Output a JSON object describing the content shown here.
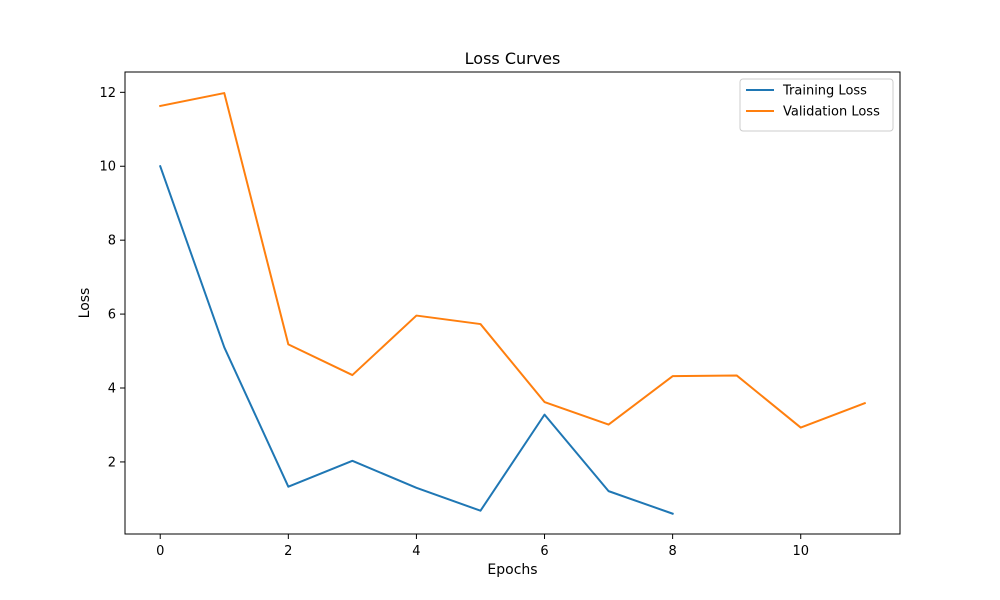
{
  "chart_data": {
    "type": "line",
    "title": "Loss Curves",
    "xlabel": "Epochs",
    "ylabel": "Loss",
    "xlim": [
      -0.55,
      11.55
    ],
    "ylim": [
      0.05,
      12.55
    ],
    "xticks": [
      0,
      2,
      4,
      6,
      8,
      10
    ],
    "yticks": [
      2,
      4,
      6,
      8,
      10,
      12
    ],
    "grid": false,
    "legend_position": "top-right",
    "series": [
      {
        "name": "Training Loss",
        "color": "#1f77b4",
        "x": [
          0,
          1,
          2,
          3,
          4,
          5,
          6,
          7,
          8
        ],
        "y": [
          10.0,
          5.1,
          1.33,
          2.03,
          1.3,
          0.68,
          3.28,
          1.21,
          0.6
        ]
      },
      {
        "name": "Validation Loss",
        "color": "#ff7f0e",
        "x": [
          0,
          1,
          2,
          3,
          4,
          5,
          6,
          7,
          8,
          9,
          10,
          11
        ],
        "y": [
          11.63,
          11.98,
          5.18,
          4.35,
          5.96,
          5.73,
          3.62,
          3.01,
          4.32,
          4.34,
          2.93,
          3.59
        ]
      }
    ]
  }
}
